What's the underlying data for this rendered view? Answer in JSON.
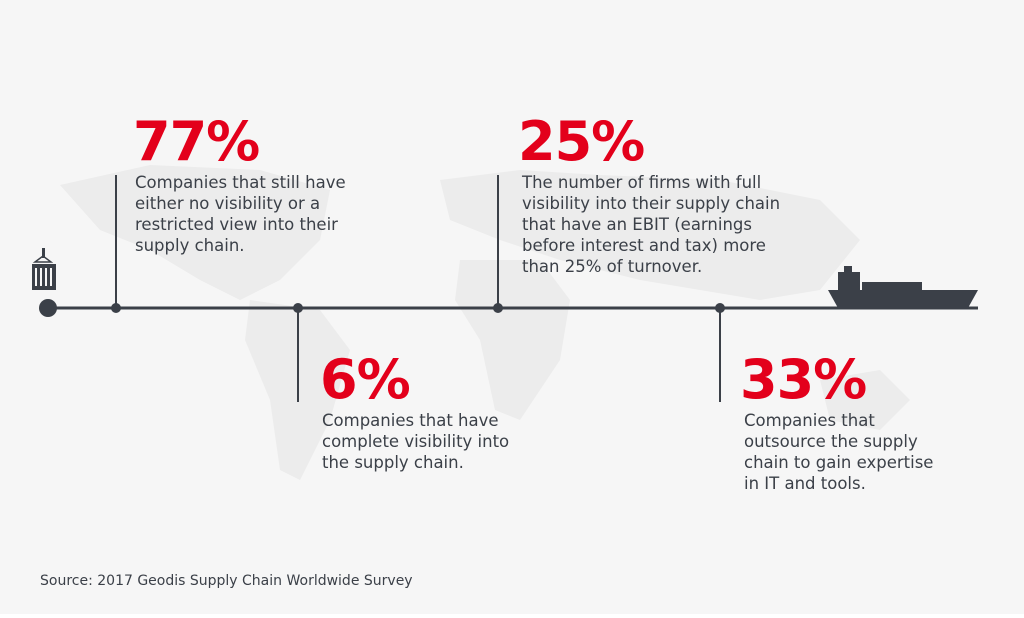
{
  "items": [
    {
      "stat": "77%",
      "lines": [
        "Companies that still have",
        "either no visibility or a",
        "restricted view into their",
        "supply chain."
      ]
    },
    {
      "stat": "6%",
      "lines": [
        "Companies that have",
        "complete visibility into",
        "the supply chain."
      ]
    },
    {
      "stat": "25%",
      "lines": [
        "The number of firms with full",
        "visibility into their supply chain",
        "that have an EBIT (earnings",
        "before interest and tax) more",
        "than 25% of turnover."
      ]
    },
    {
      "stat": "33%",
      "lines": [
        "Companies that",
        "outsource the supply",
        "chain to gain expertise",
        "in IT and tools."
      ]
    }
  ],
  "source": "Source:  2017 Geodis Supply Chain Worldwide Survey"
}
